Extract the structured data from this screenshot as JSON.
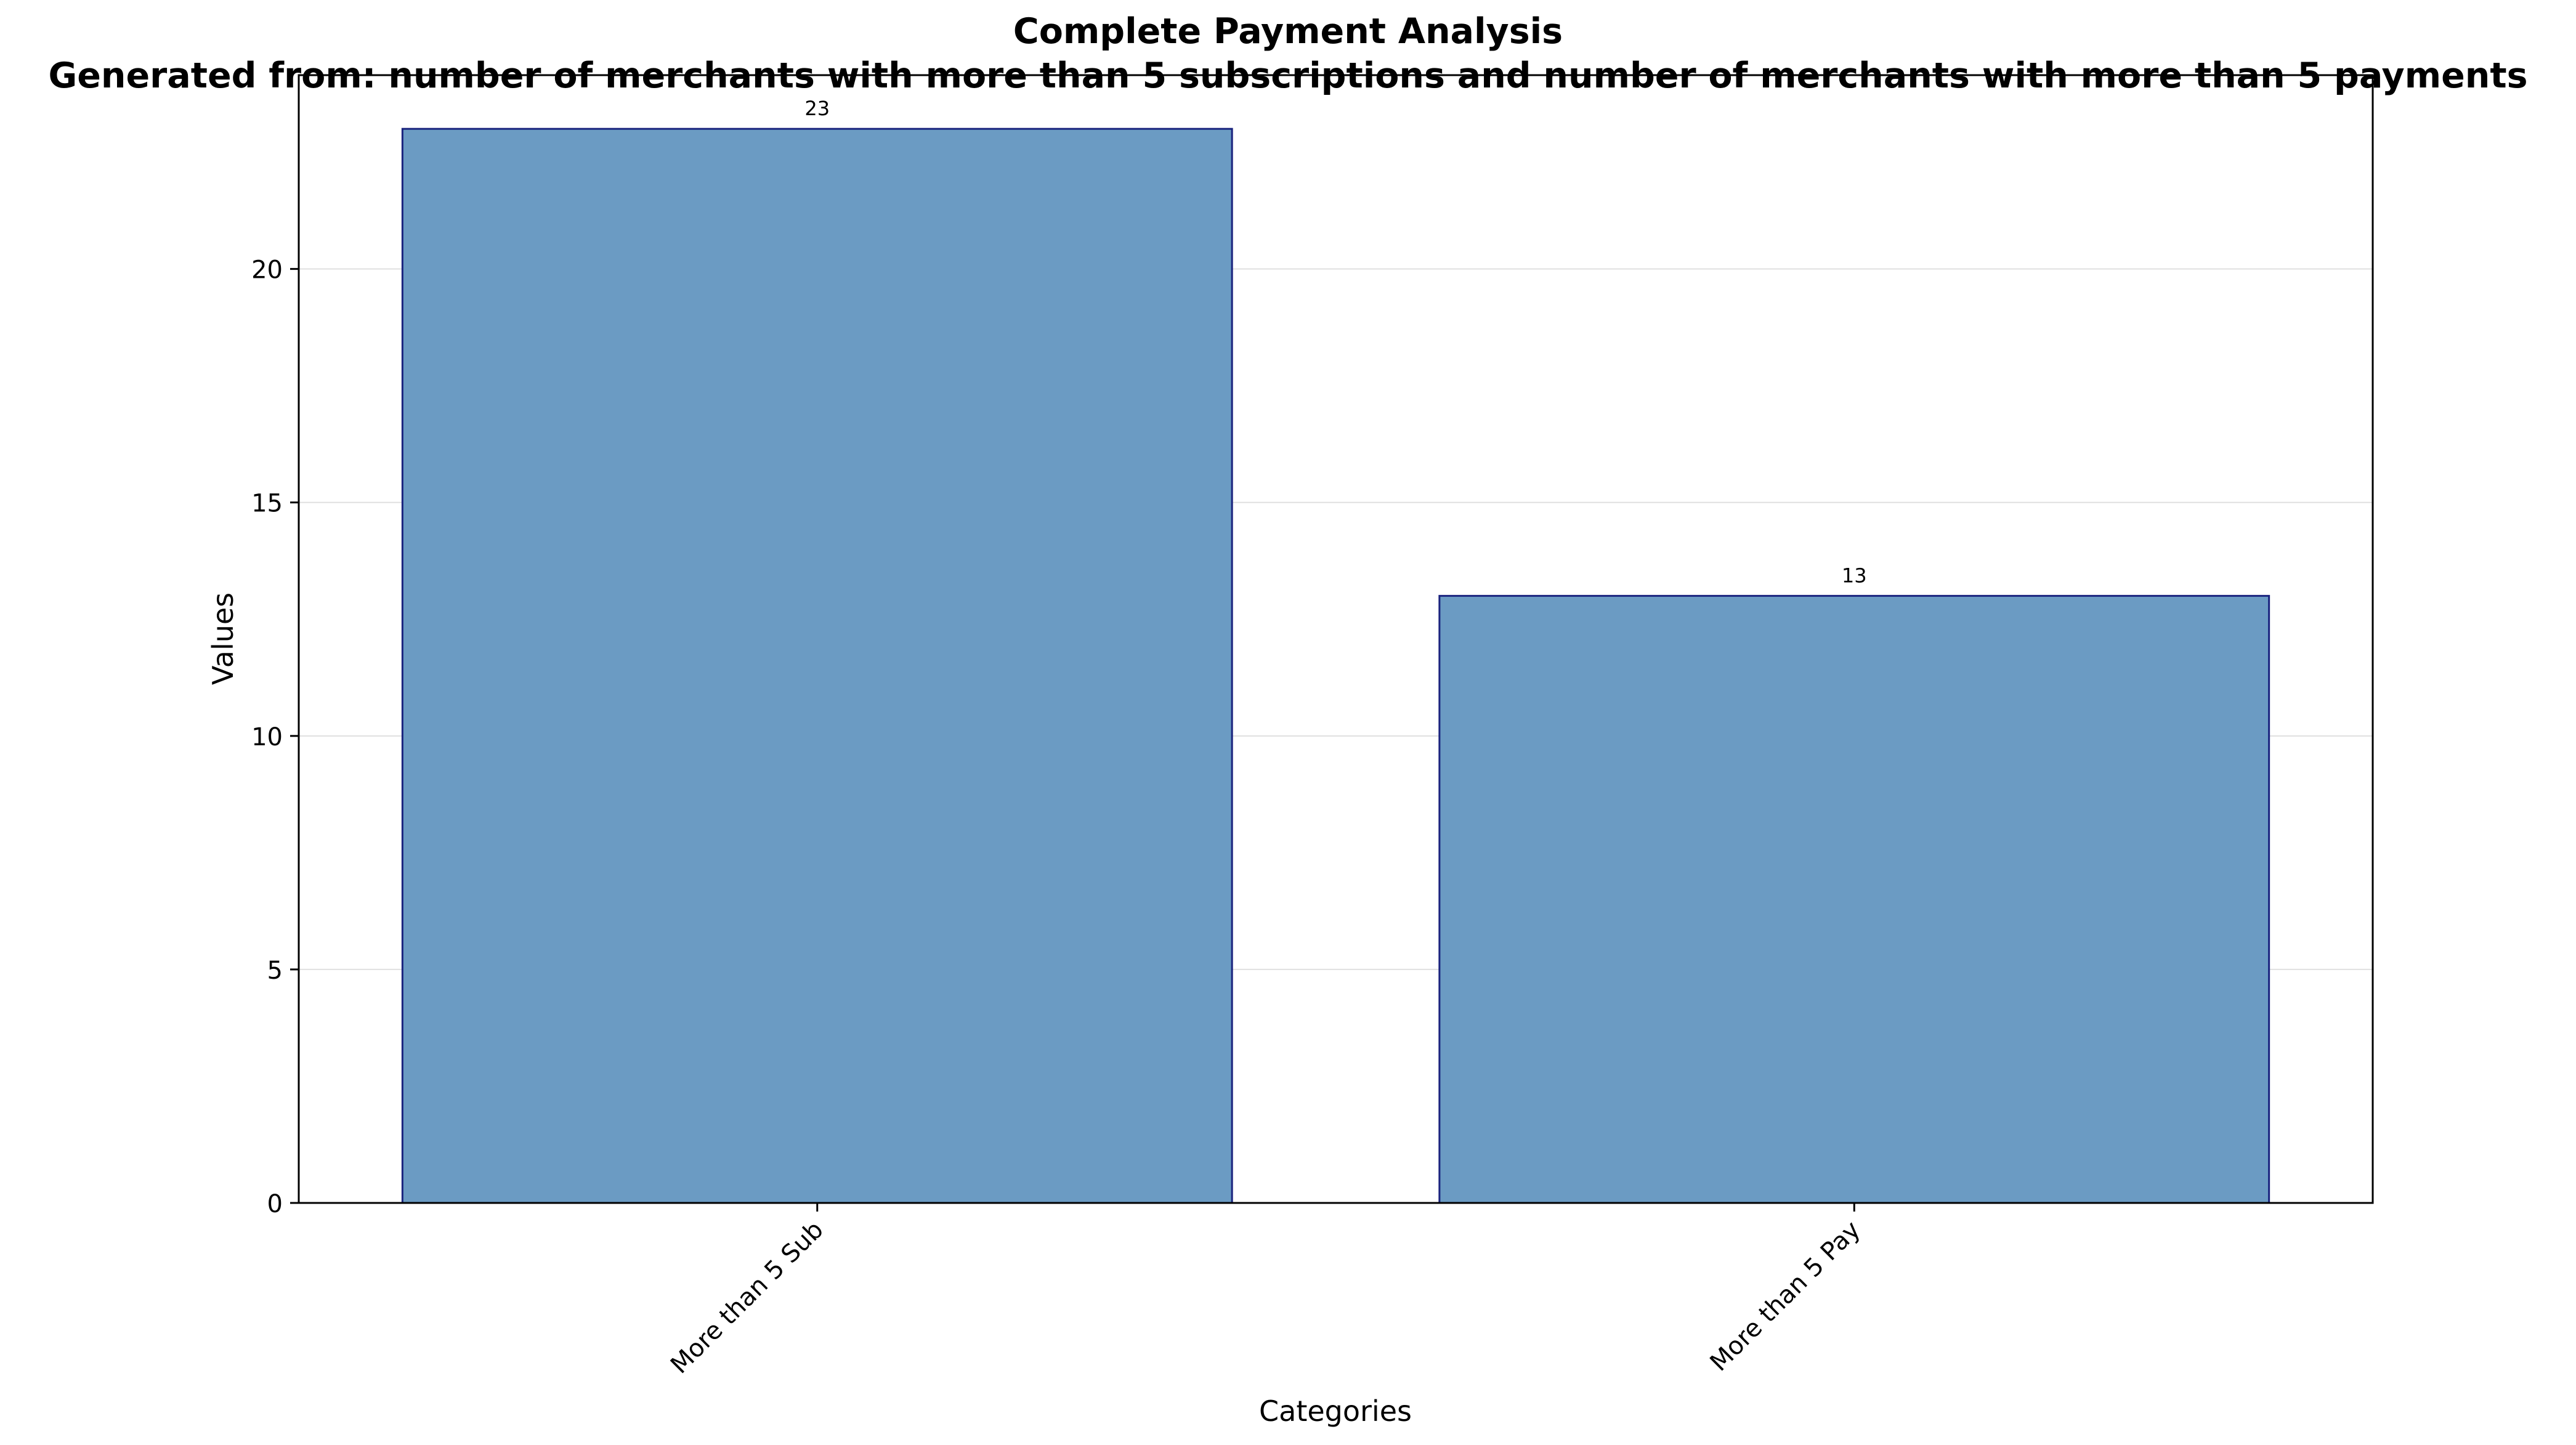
{
  "chart_data": {
    "type": "bar",
    "title": "Complete Payment Analysis",
    "subtitle": "Generated from: number of merchants with more than 5 subscriptions and number of merchants with more than 5 payments",
    "categories": [
      "More than 5 Sub",
      "More than 5 Pay"
    ],
    "values": [
      23,
      13
    ],
    "data_labels": [
      "23",
      "13"
    ],
    "xlabel": "Categories",
    "ylabel": "Values",
    "ylim": [
      0,
      24.15
    ],
    "yticks": [
      0,
      5,
      10,
      15,
      20
    ],
    "ytick_labels": [
      "0",
      "5",
      "10",
      "15",
      "20"
    ],
    "grid": "horizontal",
    "legend": "none",
    "colors": {
      "bar_fill": "#6b9bc3",
      "bar_edge": "#1a237e",
      "grid": "#e0e0e0",
      "axis": "#000000"
    }
  }
}
